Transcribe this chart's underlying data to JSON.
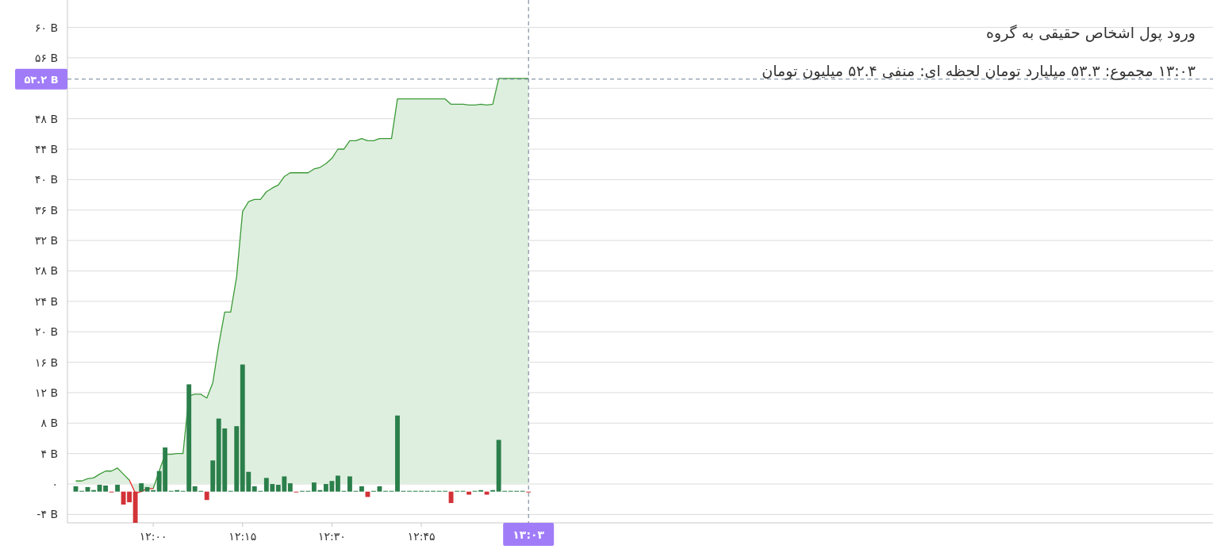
{
  "chart_data": {
    "type": "bar",
    "title": "ورود پول اشخاص حقیقی به گروه",
    "subtitle": "۱۳:۰۳ مجموع: ۵۳.۳ میلیارد تومان لحظه ای: منفی ۵۲.۴ میلیون تومان",
    "x": [
      11.7833,
      11.8,
      11.8167,
      11.8333,
      11.85,
      11.8667,
      11.8833,
      11.9,
      11.9167,
      11.9333,
      11.95,
      11.9667,
      11.9833,
      12,
      12.0167,
      12.0333,
      12.05,
      12.0667,
      12.0833,
      12.1,
      12.1167,
      12.1333,
      12.15,
      12.1667,
      12.1833,
      12.2,
      12.2167,
      12.2333,
      12.25,
      12.2667,
      12.2833,
      12.3,
      12.3167,
      12.3333,
      12.35,
      12.3667,
      12.3833,
      12.4,
      12.4167,
      12.4333,
      12.45,
      12.4667,
      12.4833,
      12.5,
      12.5167,
      12.5333,
      12.55,
      12.5667,
      12.5833,
      12.6,
      12.6167,
      12.6333,
      12.65,
      12.6667,
      12.6833,
      12.7,
      12.7167,
      12.7333,
      12.75,
      12.7667,
      12.7833,
      12.8,
      12.8167,
      12.8333,
      12.85,
      12.8667,
      12.8833,
      12.9,
      12.9167,
      12.9333,
      12.95,
      12.9667,
      12.9833,
      13,
      13.0167,
      13.0333,
      13.05
    ],
    "series": [
      {
        "type": "area",
        "color": "#3a9a37",
        "colors": [
          "#3a9a37",
          "#3a9a37",
          "#3a9a37",
          "#3a9a37",
          "#3a9a37",
          "#3a9a37",
          "#3a9a37",
          "#3a9a37",
          "#3a9a37",
          "#3a9a37",
          "#e8262b",
          "#e8262b",
          "#e8262b",
          "#e8262b",
          "#3a9a37",
          "#3a9a37",
          "#3a9a37",
          "#3a9a37",
          "#3a9a37",
          "#3a9a37",
          "#3a9a37",
          "#3a9a37",
          "#3a9a37",
          "#3a9a37",
          "#3a9a37",
          "#3a9a37",
          "#3a9a37",
          "#3a9a37",
          "#3a9a37",
          "#3a9a37",
          "#3a9a37",
          "#3a9a37",
          "#3a9a37",
          "#3a9a37",
          "#3a9a37",
          "#3a9a37",
          "#3a9a37",
          "#3a9a37",
          "#3a9a37",
          "#3a9a37",
          "#3a9a37",
          "#3a9a37",
          "#3a9a37",
          "#3a9a37",
          "#3a9a37",
          "#3a9a37",
          "#3a9a37",
          "#3a9a37",
          "#3a9a37",
          "#3a9a37",
          "#3a9a37",
          "#3a9a37",
          "#3a9a37",
          "#3a9a37",
          "#3a9a37",
          "#3a9a37",
          "#3a9a37",
          "#3a9a37",
          "#3a9a37",
          "#3a9a37",
          "#3a9a37",
          "#3a9a37",
          "#3a9a37",
          "#3a9a37",
          "#3a9a37",
          "#3a9a37",
          "#3a9a37",
          "#3a9a37",
          "#3a9a37",
          "#3a9a37",
          "#3a9a37",
          "#3a9a37",
          "#3a9a37",
          "#3a9a37",
          "#3a9a37",
          "#3a9a37",
          "#3a9a37"
        ],
        "values": [
          0.4,
          0.4,
          0.7,
          0.8,
          1.3,
          1.7,
          1.7,
          2.1,
          1.3,
          0.5,
          -1.2,
          -1.0,
          -0.6,
          -0.6,
          1.7,
          3.9,
          3.9,
          4.0,
          4.0,
          11.6,
          11.8,
          11.8,
          11.3,
          13.3,
          18.3,
          22.6,
          22.6,
          27.2,
          35.8,
          37.1,
          37.4,
          37.4,
          38.4,
          38.9,
          39.3,
          40.4,
          40.9,
          40.9,
          40.9,
          40.9,
          41.4,
          41.6,
          42.1,
          42.8,
          44.0,
          44.0,
          45.1,
          45.1,
          45.4,
          45.1,
          45.1,
          45.4,
          45.4,
          45.4,
          50.6,
          50.6,
          50.6,
          50.6,
          50.6,
          50.6,
          50.6,
          50.6,
          50.6,
          49.9,
          49.9,
          49.9,
          49.8,
          49.8,
          49.9,
          49.8,
          49.9,
          53.3,
          53.3,
          53.3,
          53.3,
          53.3,
          53.3
        ]
      },
      {
        "colors": [
          "#2b7f4b",
          "#2b7f4b",
          "#2b7f4b",
          "#2b7f4b",
          "#2b7f4b",
          "#2b7f4b",
          "#d23338",
          "#2b7f4b",
          "#d23338",
          "#d23338",
          "#d23338",
          "#2b7f4b",
          "#2b7f4b",
          "#2b7f4b",
          "#2b7f4b",
          "#2b7f4b",
          "#2b7f4b",
          "#2b7f4b",
          "#2b7f4b",
          "#2b7f4b",
          "#2b7f4b",
          "#2b7f4b",
          "#d23338",
          "#2b7f4b",
          "#2b7f4b",
          "#2b7f4b",
          "#2b7f4b",
          "#2b7f4b",
          "#2b7f4b",
          "#2b7f4b",
          "#2b7f4b",
          "#2b7f4b",
          "#2b7f4b",
          "#2b7f4b",
          "#2b7f4b",
          "#2b7f4b",
          "#2b7f4b",
          "#d23338",
          "#2b7f4b",
          "#2b7f4b",
          "#2b7f4b",
          "#2b7f4b",
          "#2b7f4b",
          "#2b7f4b",
          "#2b7f4b",
          "#2b7f4b",
          "#2b7f4b",
          "#2b7f4b",
          "#2b7f4b",
          "#d23338",
          "#2b7f4b",
          "#2b7f4b",
          "#2b7f4b",
          "#2b7f4b",
          "#2b7f4b",
          "#2b7f4b",
          "#2b7f4b",
          "#2b7f4b",
          "#2b7f4b",
          "#2b7f4b",
          "#2b7f4b",
          "#2b7f4b",
          "#2b7f4b",
          "#d23338",
          "#2b7f4b",
          "#2b7f4b",
          "#d23338",
          "#2b7f4b",
          "#2b7f4b",
          "#d23338",
          "#2b7f4b",
          "#2b7f4b",
          "#2b7f4b",
          "#2b7f4b",
          "#2b7f4b",
          "#2b7f4b",
          "#d23338"
        ],
        "base": [
          -1,
          -1,
          -1,
          -1,
          -1,
          -1,
          -1,
          -1,
          -1,
          -1,
          -1,
          -1,
          -1,
          -1,
          -1,
          -1,
          -1,
          -1,
          -1,
          -1,
          -1,
          -1,
          -1,
          -1,
          -1,
          -1,
          -1,
          -1,
          -1,
          -1,
          -1,
          -1,
          -1,
          -1,
          -1,
          -1,
          -1,
          -1,
          -1,
          -1,
          -1,
          -1,
          -1,
          -1,
          -1,
          -1,
          -1,
          -1,
          -1,
          -1,
          -1,
          -1,
          -1,
          -1,
          -1,
          -1,
          -1,
          -1,
          -1,
          -1,
          -1,
          -1,
          -1,
          -1,
          -1,
          -1,
          -1,
          -1,
          -1,
          -1,
          -1,
          -1,
          -1,
          -1,
          -1,
          -1,
          -1
        ],
        "values": [
          0.7,
          0.1,
          0.6,
          0.2,
          0.9,
          0.8,
          -0.1,
          0.9,
          -1.7,
          -1.4,
          -4.1,
          1.1,
          0.6,
          0.2,
          2.7,
          5.8,
          0.1,
          0.2,
          0.1,
          14.1,
          0.7,
          0.1,
          -1.1,
          4.1,
          9.6,
          8.3,
          0.1,
          8.6,
          16.7,
          2.6,
          0.7,
          0.1,
          1.8,
          1.0,
          0.9,
          2.0,
          1.1,
          -0.1,
          0.1,
          0.1,
          1.2,
          0.2,
          1.0,
          1.4,
          2.1,
          0.1,
          2.0,
          0.1,
          0.7,
          -0.7,
          0.1,
          0.7,
          0.1,
          0.1,
          10.0,
          0.1,
          0.1,
          0.1,
          0.1,
          0.1,
          0.1,
          0.1,
          0.1,
          -1.5,
          0.1,
          0.1,
          -0.4,
          0.1,
          0.2,
          -0.4,
          0.2,
          6.8,
          0.1,
          0.1,
          0.1,
          0.1,
          -0.1
        ]
      }
    ],
    "xlim": [
      11.76,
      14.965
    ],
    "ylim": [
      -5.1,
      63.6
    ],
    "xticks": [
      {
        "value": 12,
        "label": "۱۲:۰۰"
      },
      {
        "value": 12.25,
        "label": "۱۲:۱۵"
      },
      {
        "value": 12.5,
        "label": "۱۲:۳۰"
      },
      {
        "value": 12.75,
        "label": "۱۲:۴۵"
      },
      {
        "value": 13,
        "label": null
      }
    ],
    "yticks": [
      {
        "value": -4,
        "label": "-۴ B"
      },
      {
        "value": 0,
        "label": "۰"
      },
      {
        "value": 4,
        "label": "۴ B"
      },
      {
        "value": 8,
        "label": "۸ B"
      },
      {
        "value": 12,
        "label": "۱۲ B"
      },
      {
        "value": 16,
        "label": "۱۶ B"
      },
      {
        "value": 20,
        "label": "۲۰ B"
      },
      {
        "value": 24,
        "label": "۲۴ B"
      },
      {
        "value": 28,
        "label": "۲۸ B"
      },
      {
        "value": 32,
        "label": "۳۲ B"
      },
      {
        "value": 36,
        "label": "۳۶ B"
      },
      {
        "value": 40,
        "label": "۴۰ B"
      },
      {
        "value": 44,
        "label": "۴۴ B"
      },
      {
        "value": 48,
        "label": "۴۸ B"
      },
      {
        "value": 52,
        "label": null
      },
      {
        "value": 56,
        "label": "۵۶ B"
      },
      {
        "value": 60,
        "label": "۶۰ B"
      }
    ],
    "grid": "y",
    "ref_lines": [
      {
        "axis": "x",
        "value": 13.05,
        "label": "۱۳:۰۳",
        "color": "#6b7c93",
        "line_style": "dashed"
      },
      {
        "axis": "y",
        "value": 53.2,
        "label": "۵۳.۲ B",
        "color": "#6b7c93",
        "line_style": "dashed"
      }
    ]
  }
}
